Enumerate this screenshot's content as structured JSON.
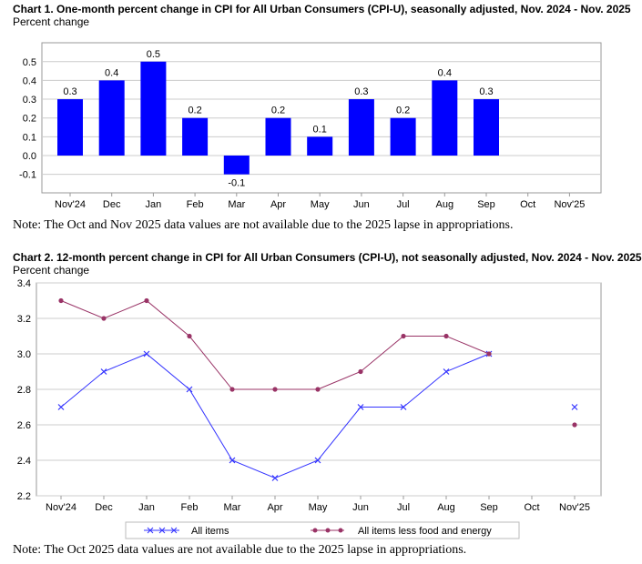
{
  "chart_data": [
    {
      "type": "bar",
      "title": "Chart 1. One-month percent change in CPI for All Urban Consumers (CPI-U), seasonally adjusted, Nov. 2024 - Nov. 2025",
      "ylabel": "Percent change",
      "categories": [
        "Nov'24",
        "Dec",
        "Jan",
        "Feb",
        "Mar",
        "Apr",
        "May",
        "Jun",
        "Jul",
        "Aug",
        "Sep",
        "Oct",
        "Nov'25"
      ],
      "values": [
        0.3,
        0.4,
        0.5,
        0.2,
        -0.1,
        0.2,
        0.1,
        0.3,
        0.2,
        0.4,
        0.3,
        null,
        null
      ],
      "data_labels": [
        "0.3",
        "0.4",
        "0.5",
        "0.2",
        "-0.1",
        "0.2",
        "0.1",
        "0.3",
        "0.2",
        "0.4",
        "0.3",
        "",
        ""
      ],
      "ylim": [
        -0.2,
        0.6
      ],
      "yticks": [
        "0.5",
        "0.4",
        "0.3",
        "0.2",
        "0.1",
        "0.0",
        "-0.1"
      ],
      "ytick_values": [
        0.5,
        0.4,
        0.3,
        0.2,
        0.1,
        0,
        -0.1
      ],
      "grid": true,
      "color": "#0000ff",
      "note": "Note: The Oct and Nov 2025 data values are not available due to the 2025 lapse in appropriations."
    },
    {
      "type": "line",
      "title": "Chart 2. 12-month percent change in CPI for All Urban Consumers (CPI-U), not seasonally adjusted, Nov. 2024 - Nov. 2025",
      "ylabel": "Percent change",
      "categories": [
        "Nov'24",
        "Dec",
        "Jan",
        "Feb",
        "Mar",
        "Apr",
        "May",
        "Jun",
        "Jul",
        "Aug",
        "Sep",
        "Oct",
        "Nov'25"
      ],
      "series": [
        {
          "name": "All items",
          "values": [
            2.7,
            2.9,
            3.0,
            2.8,
            2.4,
            2.3,
            2.4,
            2.7,
            2.7,
            2.9,
            3.0,
            null,
            2.7
          ],
          "color": "#3333ff",
          "marker": "x"
        },
        {
          "name": "All items less food and energy",
          "values": [
            3.3,
            3.2,
            3.3,
            3.1,
            2.8,
            2.8,
            2.8,
            2.9,
            3.1,
            3.1,
            3.0,
            null,
            2.6
          ],
          "color": "#993366",
          "marker": "circle"
        }
      ],
      "ylim": [
        2.2,
        3.4
      ],
      "yticks": [
        "3.4",
        "3.2",
        "3.0",
        "2.8",
        "2.6",
        "2.4",
        "2.2"
      ],
      "ytick_values": [
        3.4,
        3.2,
        3.0,
        2.8,
        2.6,
        2.4,
        2.2
      ],
      "grid": true,
      "legend": "bottom",
      "note": "Note: The Oct 2025 data values are not available due to the 2025 lapse in appropriations."
    }
  ]
}
